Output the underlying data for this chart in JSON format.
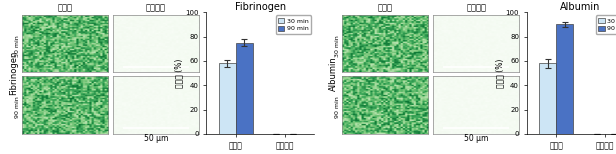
{
  "fibrinogen_title": "Fibrinogen",
  "albumin_title": "Albumin",
  "categories": [
    "비교군",
    "나노유막"
  ],
  "fib_30min": [
    58,
    0
  ],
  "fib_90min": [
    75,
    0
  ],
  "fib_30min_err": [
    3,
    0
  ],
  "fib_90min_err": [
    3,
    0
  ],
  "alb_30min": [
    58,
    0
  ],
  "alb_90min": [
    90,
    0
  ],
  "alb_30min_err": [
    3.5,
    0
  ],
  "alb_90min_err": [
    2,
    0
  ],
  "ylabel": "부착률 (%)",
  "ylim": [
    0,
    100
  ],
  "yticks": [
    0,
    20,
    40,
    60,
    80,
    100
  ],
  "bar_width": 0.35,
  "color_30min": "#cde5f5",
  "color_90min": "#4a72c4",
  "scale_bar_label": "50 μm",
  "col_label_bikyo": "비교군",
  "col_label_nano": "나노유막",
  "row_label_fib": "Fibrinogen",
  "row_label_alb": "Albumin",
  "legend_30min": "30 min",
  "legend_90min": "90 min",
  "img_border_color": "#888888",
  "background_color": "#ffffff"
}
